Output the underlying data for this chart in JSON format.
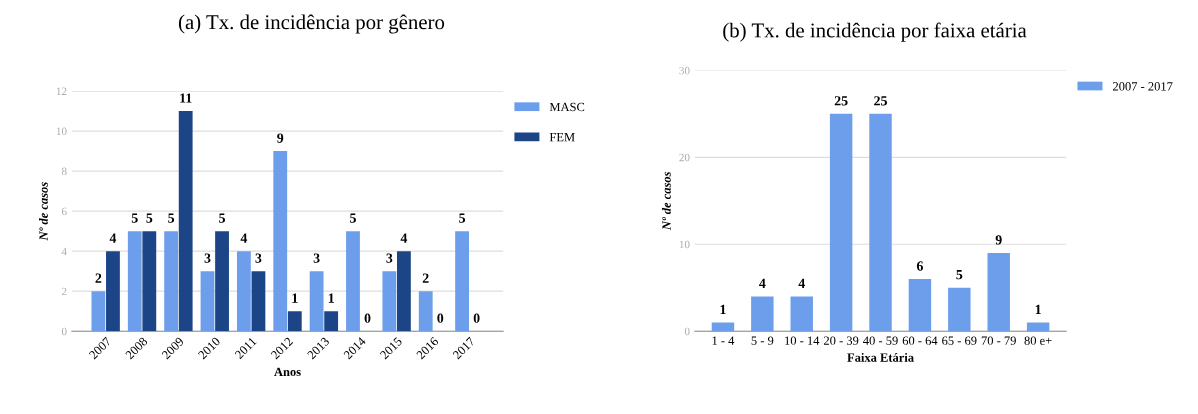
{
  "chart_data": [
    {
      "type": "bar",
      "title": "(a) Tx. de incidência por gênero",
      "xlabel": "Anos",
      "ylabel": "Nº de casos",
      "categories": [
        "2007",
        "2008",
        "2009",
        "2010",
        "2011",
        "2012",
        "2013",
        "2014",
        "2015",
        "2016",
        "2017"
      ],
      "series": [
        {
          "name": "MASC",
          "color": "#6d9eeb",
          "values": [
            2,
            5,
            5,
            3,
            4,
            9,
            3,
            5,
            3,
            2,
            5
          ]
        },
        {
          "name": "FEM",
          "color": "#1c4587",
          "values": [
            4,
            5,
            11,
            5,
            3,
            1,
            1,
            0,
            4,
            0,
            0
          ]
        }
      ],
      "ylim": [
        0,
        12
      ],
      "yticks": [
        0,
        2,
        4,
        6,
        8,
        10,
        12
      ],
      "grid": "y",
      "legend": "right",
      "data_labels": true
    },
    {
      "type": "bar",
      "title": "(b) Tx. de incidência por faixa etária",
      "xlabel": "Faixa Etária",
      "ylabel": "Nº de casos",
      "categories": [
        "1 - 4",
        "5 - 9",
        "10 - 14",
        "20 - 39",
        "40 - 59",
        "60 - 64",
        "65 - 69",
        "70 - 79",
        "80 e+"
      ],
      "series": [
        {
          "name": "2007 - 2017",
          "color": "#6d9eeb",
          "values": [
            1,
            4,
            4,
            25,
            25,
            6,
            5,
            9,
            1
          ]
        }
      ],
      "ylim": [
        0,
        30
      ],
      "yticks": [
        0,
        10,
        20,
        30
      ],
      "grid": "y",
      "legend": "right",
      "data_labels": true
    }
  ]
}
